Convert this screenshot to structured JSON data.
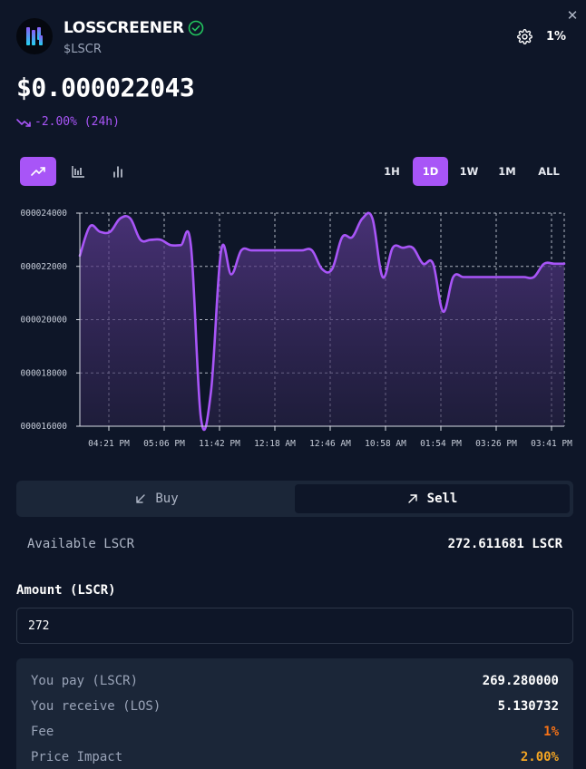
{
  "header": {
    "token_name": "LOSSCREENER",
    "ticker": "$LSCR",
    "slippage": "1%"
  },
  "price": {
    "value": "$0.000022043",
    "change": "-2.00% (24h)"
  },
  "chart_controls": {
    "types": [
      {
        "icon": "trend-line-icon",
        "active": true
      },
      {
        "icon": "candlestick-icon",
        "active": false
      },
      {
        "icon": "bar-chart-icon",
        "active": false
      }
    ],
    "ranges": [
      "1H",
      "1D",
      "1W",
      "1M",
      "ALL"
    ],
    "active_range": "1D"
  },
  "chart_data": {
    "type": "area",
    "ylim": [
      1.6e-05,
      2.4e-05
    ],
    "y_tick_labels": [
      "000024000",
      "000022000",
      "000020000",
      "000018000",
      "000016000"
    ],
    "x_tick_labels": [
      "04:21 PM",
      "05:06 PM",
      "11:42 PM",
      "12:18 AM",
      "12:46 AM",
      "10:58 AM",
      "01:54 PM",
      "03:26 PM",
      "03:41 PM"
    ],
    "grid": true,
    "series_color": "#a855f7",
    "values": [
      2.24e-05,
      2.35e-05,
      2.33e-05,
      2.33e-05,
      2.38e-05,
      2.38e-05,
      2.3e-05,
      2.3e-05,
      2.3e-05,
      2.28e-05,
      2.28e-05,
      2.28e-05,
      1.63e-05,
      1.73e-05,
      2.26e-05,
      2.17e-05,
      2.26e-05,
      2.26e-05,
      2.26e-05,
      2.26e-05,
      2.26e-05,
      2.26e-05,
      2.26e-05,
      2.26e-05,
      2.19e-05,
      2.19e-05,
      2.31e-05,
      2.31e-05,
      2.38e-05,
      2.38e-05,
      2.16e-05,
      2.27e-05,
      2.27e-05,
      2.27e-05,
      2.21e-05,
      2.21e-05,
      2.03e-05,
      2.16e-05,
      2.16e-05,
      2.16e-05,
      2.16e-05,
      2.16e-05,
      2.16e-05,
      2.16e-05,
      2.16e-05,
      2.16e-05,
      2.21e-05,
      2.21e-05,
      2.21e-05
    ]
  },
  "trade": {
    "buy_label": "Buy",
    "sell_label": "Sell",
    "active_tab": "Sell",
    "available_label": "Available LSCR",
    "available_value": "272.611681 LSCR",
    "amount_label": "Amount (LSCR)",
    "amount_value": "272",
    "summary": [
      {
        "label": "You pay (LSCR)",
        "value": "269.280000",
        "color": "#ffffff"
      },
      {
        "label": "You receive (LOS)",
        "value": "5.130732",
        "color": "#ffffff"
      },
      {
        "label": "Fee",
        "value": "1%",
        "color": "#f97316"
      },
      {
        "label": "Price Impact",
        "value": "2.00%",
        "color": "#f5a623"
      }
    ]
  },
  "colors": {
    "accent": "#a855f7",
    "background": "#0e1628",
    "panel": "#1b2638",
    "verified": "#22c55e"
  }
}
